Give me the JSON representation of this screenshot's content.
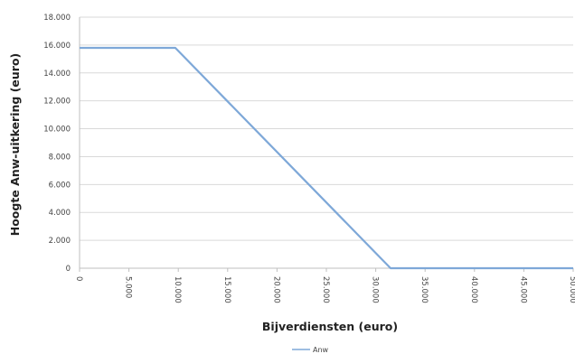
{
  "chart_data": {
    "type": "line",
    "xlabel": "Bijverdiensten (euro)",
    "ylabel": "Hoogte Anw-uitkering (euro)",
    "xlim": [
      0,
      50000
    ],
    "ylim": [
      0,
      18000
    ],
    "x_ticks": [
      0,
      5000,
      10000,
      15000,
      20000,
      25000,
      30000,
      35000,
      40000,
      45000,
      50000
    ],
    "x_tick_labels": [
      "0",
      "5.000",
      "10.000",
      "15.000",
      "20.000",
      "25.000",
      "30.000",
      "35.000",
      "40.000",
      "45.000",
      "50.000"
    ],
    "y_ticks": [
      0,
      2000,
      4000,
      6000,
      8000,
      10000,
      12000,
      14000,
      16000,
      18000
    ],
    "y_tick_labels": [
      "0",
      "2.000",
      "4.000",
      "6.000",
      "8.000",
      "10.000",
      "12.000",
      "14.000",
      "16.000",
      "18.000"
    ],
    "grid": true,
    "legend_position": "bottom-center",
    "series": [
      {
        "name": "Anw",
        "color": "#7ea8d8",
        "x": [
          0,
          9700,
          31500,
          50000
        ],
        "y": [
          15800,
          15800,
          0,
          0
        ]
      }
    ]
  }
}
